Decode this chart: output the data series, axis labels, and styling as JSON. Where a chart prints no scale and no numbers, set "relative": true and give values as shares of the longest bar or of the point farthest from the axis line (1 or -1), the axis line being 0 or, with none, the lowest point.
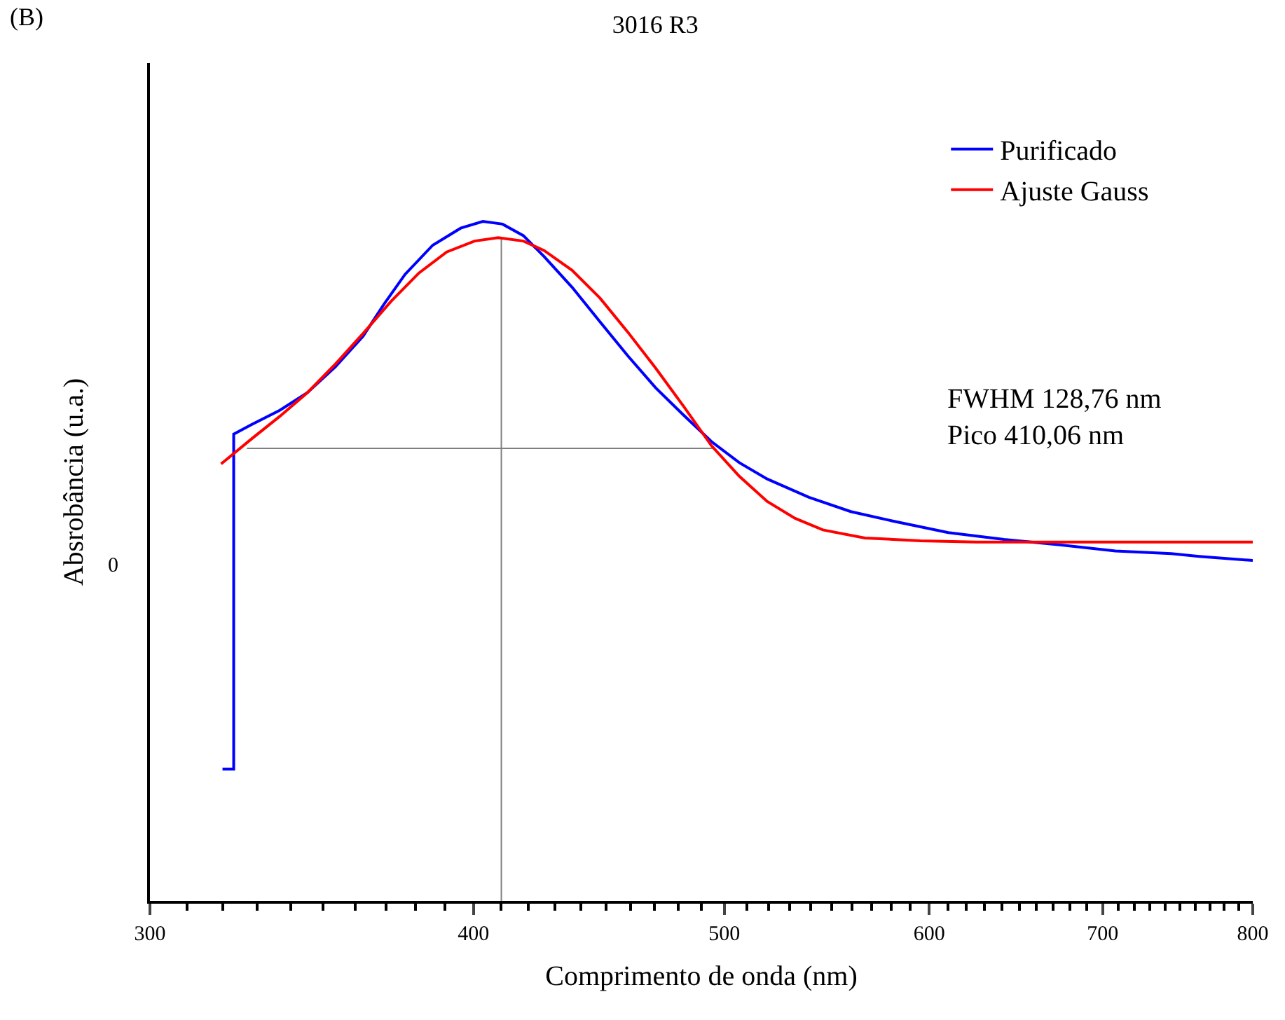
{
  "chart_data": {
    "type": "line",
    "title": "3016 R3",
    "xlabel": "Comprimento de onda (nm)",
    "ylabel": "Absrobância (u.a.)",
    "relative": true,
    "log": "x",
    "legend": "top right",
    "xlim": [
      300,
      800
    ],
    "xticks": [
      300,
      {
        "value": 310,
        "label": null
      },
      {
        "value": 320,
        "label": null
      },
      {
        "value": 330,
        "label": null
      },
      {
        "value": 340,
        "label": null
      },
      {
        "value": 350,
        "label": null
      },
      {
        "value": 360,
        "label": null
      },
      {
        "value": 370,
        "label": null
      },
      {
        "value": 380,
        "label": null
      },
      {
        "value": 390,
        "label": null
      },
      400,
      {
        "value": 410,
        "label": null
      },
      {
        "value": 420,
        "label": null
      },
      {
        "value": 430,
        "label": null
      },
      {
        "value": 440,
        "label": null
      },
      {
        "value": 450,
        "label": null
      },
      {
        "value": 460,
        "label": null
      },
      {
        "value": 470,
        "label": null
      },
      {
        "value": 480,
        "label": null
      },
      {
        "value": 490,
        "label": null
      },
      500,
      {
        "value": 510,
        "label": null
      },
      {
        "value": 520,
        "label": null
      },
      {
        "value": 530,
        "label": null
      },
      {
        "value": 540,
        "label": null
      },
      {
        "value": 550,
        "label": null
      },
      {
        "value": 560,
        "label": null
      },
      {
        "value": 570,
        "label": null
      },
      {
        "value": 580,
        "label": null
      },
      {
        "value": 590,
        "label": null
      },
      600,
      {
        "value": 610,
        "label": null
      },
      {
        "value": 620,
        "label": null
      },
      {
        "value": 630,
        "label": null
      },
      {
        "value": 640,
        "label": null
      },
      {
        "value": 650,
        "label": null
      },
      {
        "value": 660,
        "label": null
      },
      {
        "value": 670,
        "label": null
      },
      {
        "value": 680,
        "label": null
      },
      {
        "value": 690,
        "label": null
      },
      700,
      {
        "value": 710,
        "label": null
      },
      {
        "value": 720,
        "label": null
      },
      {
        "value": 730,
        "label": null
      },
      {
        "value": 740,
        "label": null
      },
      {
        "value": 750,
        "label": null
      },
      {
        "value": 760,
        "label": null
      },
      {
        "value": 770,
        "label": null
      },
      {
        "value": 780,
        "label": null
      },
      {
        "value": 790,
        "label": null
      },
      800
    ],
    "annotations": [
      "(B)",
      "FWHM 128,76 nm\nPico 410,06 nm",
      "0"
    ],
    "series": [
      {
        "name": "Purificado",
        "color": "#0000ff",
        "x": [
          320.0,
          323.2,
          323.2,
          328.4,
          336.7,
          345.1,
          353.8,
          362.6,
          369.4,
          376.4,
          385.8,
          395.5,
          403.4,
          410.5,
          418.2,
          426.0,
          436.7,
          447.7,
          458.9,
          470.4,
          482.2,
          494.3,
          506.7,
          519.4,
          539.1,
          559.5,
          580.8,
          610.2,
          641.2,
          673.9,
          708.0,
          744.0,
          762.7,
          800
        ],
        "values": [
          0.194,
          0.194,
          0.687,
          0.701,
          0.722,
          0.748,
          0.786,
          0.831,
          0.878,
          0.922,
          0.965,
          0.99,
          1.0,
          0.996,
          0.979,
          0.948,
          0.903,
          0.852,
          0.802,
          0.755,
          0.715,
          0.676,
          0.645,
          0.621,
          0.594,
          0.573,
          0.559,
          0.542,
          0.532,
          0.524,
          0.515,
          0.511,
          0.507,
          0.501
        ]
      },
      {
        "name": "Ajuste Gauss",
        "color": "#ff0000",
        "x": [
          319.6,
          328.4,
          336.7,
          345.1,
          353.8,
          362.6,
          371.7,
          381.1,
          390.6,
          400.4,
          408.9,
          418.2,
          426.0,
          436.7,
          447.7,
          458.9,
          470.4,
          482.2,
          494.3,
          506.7,
          519.4,
          532.5,
          545.8,
          566.6,
          595.3,
          625.5,
          708.0,
          800
        ],
        "values": [
          0.643,
          0.68,
          0.713,
          0.748,
          0.79,
          0.835,
          0.882,
          0.924,
          0.955,
          0.971,
          0.976,
          0.971,
          0.957,
          0.928,
          0.887,
          0.837,
          0.784,
          0.728,
          0.67,
          0.625,
          0.588,
          0.563,
          0.546,
          0.534,
          0.53,
          0.528,
          0.528,
          0.528
        ]
      },
      {
        "color": "#808080",
        "x": [
          327,
          496
        ],
        "values": [
          0.666,
          0.666
        ]
      },
      {
        "color": "#808080",
        "x": [
          410.06,
          410.06
        ],
        "values": [
          0,
          0.975
        ]
      }
    ]
  }
}
